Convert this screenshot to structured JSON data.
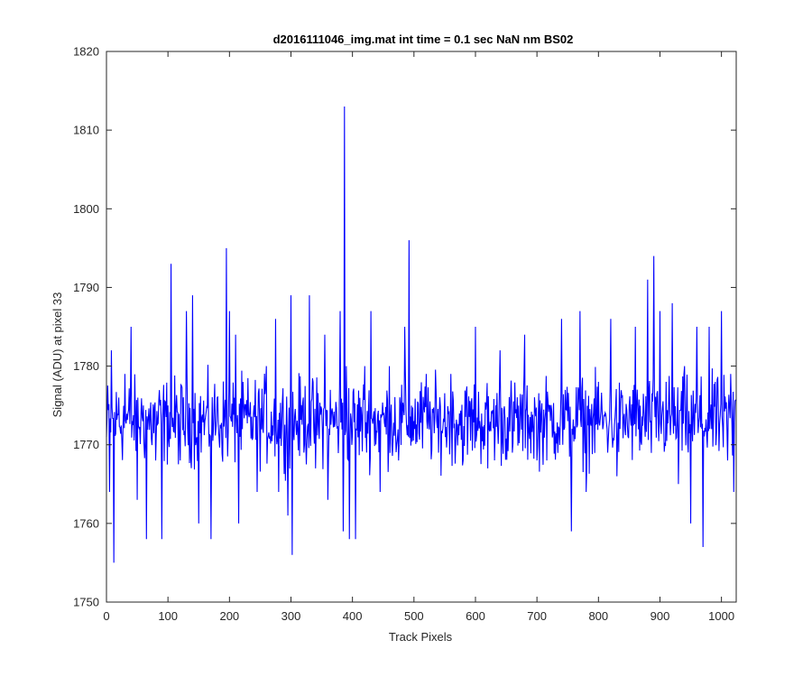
{
  "chart_data": {
    "type": "line",
    "title": "d2016111046_img.mat int time = 0.1 sec  NaN nm BS02",
    "xlabel": "Track Pixels",
    "ylabel": "Signal (ADU) at pixel 33",
    "xlim": [
      0,
      1024
    ],
    "ylim": [
      1750,
      1820
    ],
    "xticks": [
      0,
      100,
      200,
      300,
      400,
      500,
      600,
      700,
      800,
      900,
      1000
    ],
    "yticks": [
      1750,
      1760,
      1770,
      1780,
      1790,
      1800,
      1810,
      1820
    ],
    "grid": false,
    "series": [
      {
        "color": "#0000ff",
        "anchors": [
          [
            0,
            1771
          ],
          [
            5,
            1764
          ],
          [
            8,
            1782
          ],
          [
            12,
            1755
          ],
          [
            20,
            1776
          ],
          [
            30,
            1779
          ],
          [
            40,
            1785
          ],
          [
            50,
            1763
          ],
          [
            60,
            1775
          ],
          [
            65,
            1758
          ],
          [
            80,
            1768
          ],
          [
            90,
            1758
          ],
          [
            100,
            1775
          ],
          [
            105,
            1793
          ],
          [
            120,
            1768
          ],
          [
            130,
            1787
          ],
          [
            140,
            1789
          ],
          [
            150,
            1760
          ],
          [
            160,
            1773
          ],
          [
            170,
            1758
          ],
          [
            180,
            1776
          ],
          [
            195,
            1795
          ],
          [
            200,
            1787
          ],
          [
            210,
            1784
          ],
          [
            215,
            1760
          ],
          [
            240,
            1775
          ],
          [
            245,
            1764
          ],
          [
            260,
            1780
          ],
          [
            275,
            1786
          ],
          [
            280,
            1764
          ],
          [
            295,
            1761
          ],
          [
            300,
            1789
          ],
          [
            302,
            1756
          ],
          [
            320,
            1776
          ],
          [
            330,
            1789
          ],
          [
            340,
            1767
          ],
          [
            355,
            1784
          ],
          [
            360,
            1763
          ],
          [
            380,
            1787
          ],
          [
            385,
            1759
          ],
          [
            387,
            1813
          ],
          [
            390,
            1780
          ],
          [
            395,
            1758
          ],
          [
            405,
            1758
          ],
          [
            420,
            1780
          ],
          [
            430,
            1787
          ],
          [
            445,
            1764
          ],
          [
            460,
            1780
          ],
          [
            475,
            1768
          ],
          [
            485,
            1785
          ],
          [
            492,
            1796
          ],
          [
            500,
            1773
          ],
          [
            520,
            1779
          ],
          [
            540,
            1769
          ],
          [
            560,
            1779
          ],
          [
            580,
            1768
          ],
          [
            600,
            1785
          ],
          [
            620,
            1767
          ],
          [
            640,
            1782
          ],
          [
            660,
            1769
          ],
          [
            680,
            1784
          ],
          [
            700,
            1768
          ],
          [
            720,
            1775
          ],
          [
            740,
            1786
          ],
          [
            750,
            1773
          ],
          [
            756,
            1759
          ],
          [
            770,
            1787
          ],
          [
            780,
            1764
          ],
          [
            800,
            1778
          ],
          [
            820,
            1786
          ],
          [
            830,
            1766
          ],
          [
            850,
            1775
          ],
          [
            860,
            1785
          ],
          [
            870,
            1770
          ],
          [
            880,
            1791
          ],
          [
            890,
            1794
          ],
          [
            900,
            1787
          ],
          [
            910,
            1778
          ],
          [
            920,
            1788
          ],
          [
            930,
            1765
          ],
          [
            940,
            1780
          ],
          [
            950,
            1760
          ],
          [
            960,
            1785
          ],
          [
            970,
            1757
          ],
          [
            980,
            1785
          ],
          [
            990,
            1778
          ],
          [
            1000,
            1787
          ],
          [
            1010,
            1768
          ],
          [
            1015,
            1779
          ],
          [
            1020,
            1764
          ]
        ],
        "baseline": 1773,
        "noise_amplitude": 5,
        "n_points": 1024
      }
    ]
  }
}
